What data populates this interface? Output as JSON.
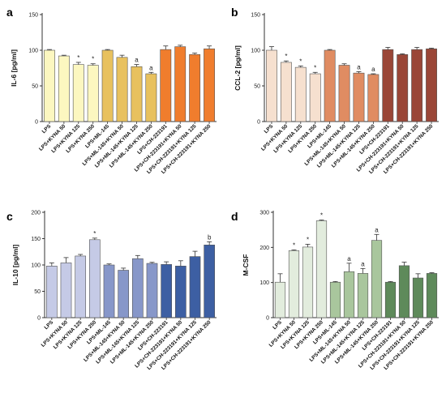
{
  "chart_data": [
    {
      "panel": "a",
      "type": "bar",
      "ylabel": "IL-6 [pg/ml]",
      "ylim": [
        0,
        150
      ],
      "yticks": [
        0,
        50,
        100,
        150
      ],
      "categories": [
        "LPS",
        "LPS+KYNA 50",
        "LPS+KYNA 125",
        "LPS+KYNA 250",
        "LPS+ML-145",
        "LPS+ML-145+KYNA 50",
        "LPS+ML-145+KYNA 125",
        "LPS+ML-145+KYNA 250",
        "LPS+CH-223191",
        "LPS+CH-223191+KYNA 50",
        "LPS+CH-223191+KYNA 125",
        "LPS+CH-223191+KYNA 250"
      ],
      "values": [
        100,
        92,
        80,
        79,
        100,
        90,
        77,
        67,
        101,
        105,
        94,
        102
      ],
      "errors": [
        1,
        1,
        3,
        2,
        1,
        3,
        3,
        2,
        5,
        2,
        2,
        4
      ],
      "annotations": [
        "",
        "",
        "*",
        "*",
        "",
        "",
        "a",
        "a",
        "",
        "",
        "",
        ""
      ],
      "colors": [
        "#fcf7c0",
        "#fcf7c0",
        "#fcf7c0",
        "#fcf7c0",
        "#e8c15e",
        "#e8c15e",
        "#e8c15e",
        "#e8c15e",
        "#f07d2d",
        "#f07d2d",
        "#f07d2d",
        "#f07d2d"
      ]
    },
    {
      "panel": "b",
      "type": "bar",
      "ylabel": "CCL-2 [pg/ml]",
      "ylim": [
        0,
        150
      ],
      "yticks": [
        0,
        50,
        100,
        150
      ],
      "categories": [
        "LPS",
        "LPS+KYNA 50",
        "LPS+KYNA 125",
        "LPS+KYNA 250",
        "LPS+ML-145",
        "LPS+ML-145+KYNA 50",
        "LPS+ML-145+KYNA 125",
        "LPS+ML-145+KYNA 250",
        "LPS+CH-223191",
        "LPS+CH-223191+KYNA 50",
        "LPS+CH-223191+KYNA 125",
        "LPS+CH-223191+KYNA 250"
      ],
      "values": [
        100,
        83,
        76,
        67,
        100,
        79,
        68,
        66,
        101,
        94,
        101,
        102
      ],
      "errors": [
        5,
        2,
        2,
        2,
        1,
        2,
        2,
        1,
        3,
        1,
        3,
        1
      ],
      "annotations": [
        "",
        "*",
        "*",
        "*",
        "",
        "",
        "a",
        "a",
        "",
        "",
        "",
        ""
      ],
      "colors": [
        "#f6e0cf",
        "#f6e0cf",
        "#f6e0cf",
        "#f6e0cf",
        "#e08c62",
        "#e08c62",
        "#e08c62",
        "#e08c62",
        "#9a4637",
        "#9a4637",
        "#9a4637",
        "#9a4637"
      ]
    },
    {
      "panel": "c",
      "type": "bar",
      "ylabel": "IL-10 [pg/ml]",
      "ylim": [
        0,
        200
      ],
      "yticks": [
        0,
        50,
        100,
        150,
        200
      ],
      "categories": [
        "LPS",
        "LPS+KYNA 50",
        "LPS+KYNA 125",
        "LPS+KYNA 250",
        "LPS+ML-145",
        "LPS+ML-145+KYNA 50",
        "LPS+ML-145+KYNA 125",
        "LPS+ML-145+KYNA 250",
        "LPS+CH-223191",
        "LPS+CH-223191+KYNA 50",
        "LPS+CH-223191+KYNA 125",
        "LPS+CH-223191+KYNA 250"
      ],
      "values": [
        98,
        104,
        117,
        148,
        100,
        90,
        112,
        103,
        101,
        98,
        116,
        138
      ],
      "errors": [
        6,
        10,
        3,
        3,
        2,
        4,
        6,
        2,
        5,
        10,
        10,
        6
      ],
      "annotations": [
        "",
        "",
        "",
        "*",
        "",
        "",
        "",
        "",
        "",
        "",
        "",
        "b"
      ],
      "colors": [
        "#c5cae6",
        "#c5cae6",
        "#c5cae6",
        "#c5cae6",
        "#8797c9",
        "#8797c9",
        "#8797c9",
        "#8797c9",
        "#3d5fa3",
        "#3d5fa3",
        "#3d5fa3",
        "#3d5fa3"
      ]
    },
    {
      "panel": "d",
      "type": "bar",
      "ylabel": "M-CSF",
      "ylim": [
        0,
        300
      ],
      "yticks": [
        0,
        100,
        200,
        300
      ],
      "categories": [
        "LPS",
        "LPS+KYNA 50",
        "LPS+KYNA 125",
        "LPS+KYNA 250",
        "LPS+ML-145",
        "LPS+ML-145+KYNA 50",
        "LPS+ML-145+KYNA 125",
        "LPS+ML-145+KYNA 250",
        "LPS+CH-223191",
        "LPS+CH-223191+KYNA 50",
        "LPS+CH-223191+KYNA 125",
        "LPS+CH-223191+KYNA 250"
      ],
      "values": [
        101,
        191,
        201,
        276,
        101,
        131,
        126,
        220,
        101,
        148,
        113,
        126
      ],
      "errors": [
        24,
        2,
        8,
        2,
        2,
        24,
        14,
        17,
        2,
        10,
        12,
        2
      ],
      "annotations": [
        "",
        "*",
        "*",
        "*",
        "",
        "a",
        "a",
        "a",
        "",
        "",
        "",
        ""
      ],
      "colors": [
        "#e2ecdd",
        "#e2ecdd",
        "#e2ecdd",
        "#e2ecdd",
        "#a9c69d",
        "#a9c69d",
        "#a9c69d",
        "#a9c69d",
        "#5e8a5a",
        "#5e8a5a",
        "#5e8a5a",
        "#5e8a5a"
      ]
    }
  ]
}
